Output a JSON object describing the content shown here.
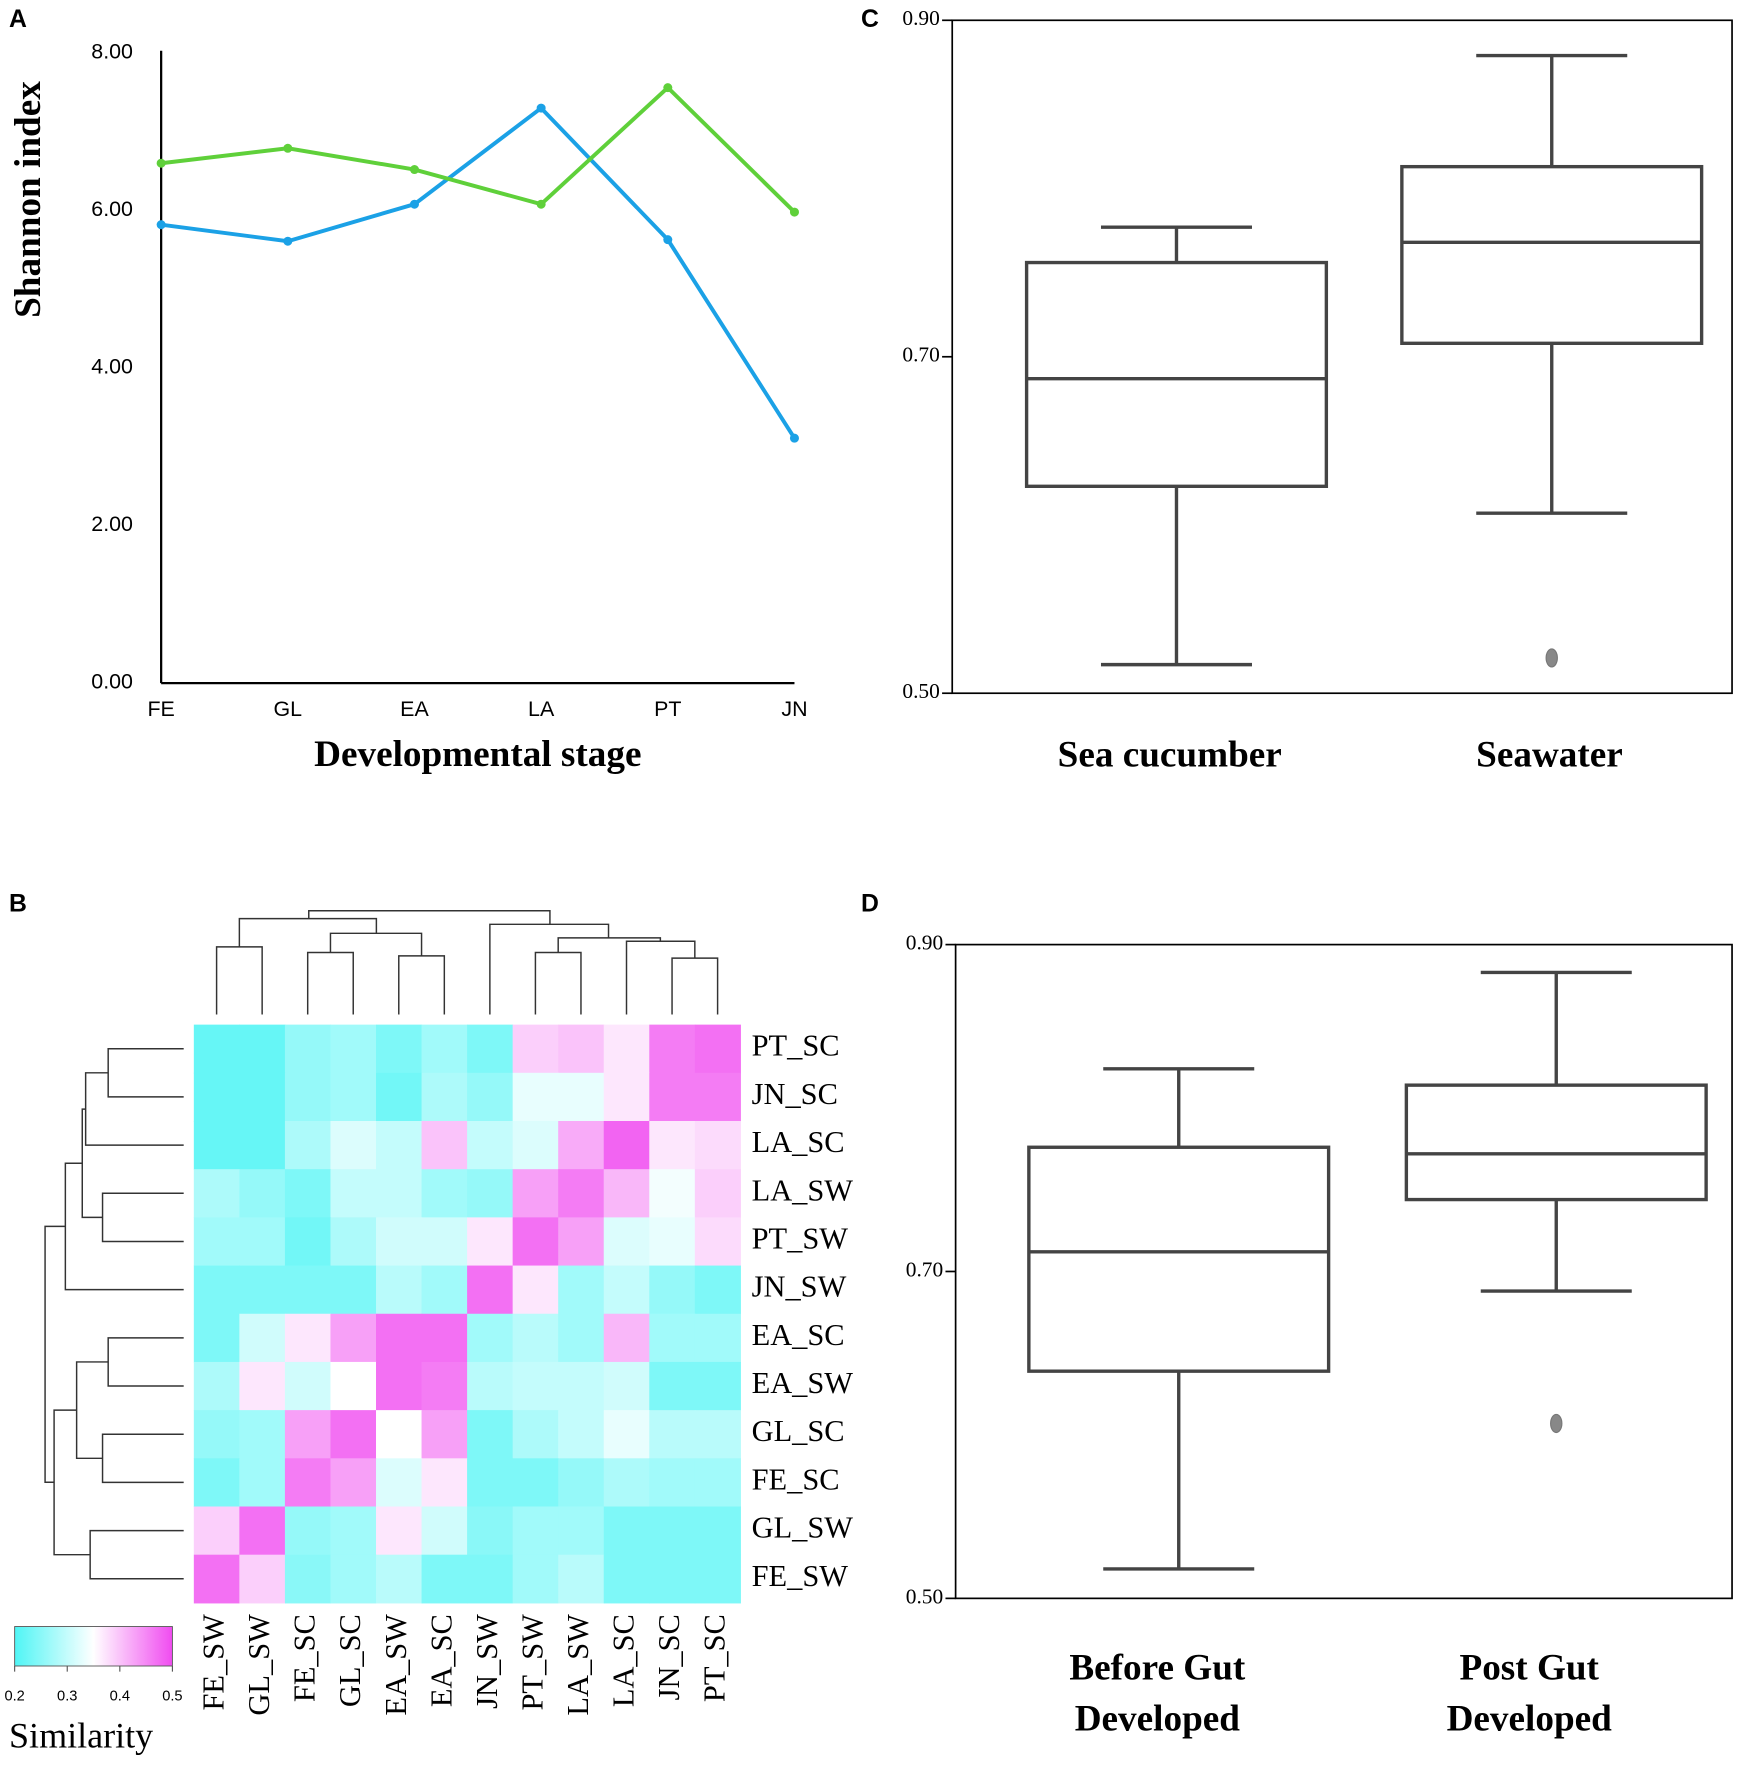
{
  "chart_data": [
    {
      "type": "line",
      "panel": "A",
      "xlabel": "Developmental stage",
      "ylabel": "Shannon index",
      "categories": [
        "FE",
        "GL",
        "EA",
        "LA",
        "PT",
        "JN"
      ],
      "series": [
        {
          "color": "#1ba1e6",
          "values": [
            5.82,
            5.61,
            6.08,
            7.3,
            5.63,
            3.11
          ]
        },
        {
          "color": "#5fd03a",
          "values": [
            6.6,
            6.79,
            6.52,
            6.08,
            7.56,
            5.98
          ]
        }
      ],
      "ylim": [
        0,
        8
      ],
      "yticks": [
        {
          "value": 0,
          "label": "0.00"
        },
        {
          "value": 2,
          "label": "2.00"
        },
        {
          "value": 4,
          "label": "4.00"
        },
        {
          "value": 6,
          "label": "6.00"
        },
        {
          "value": 8,
          "label": "8.00"
        }
      ],
      "grid": false
    },
    {
      "type": "heatmap",
      "panel": "B",
      "rows": [
        "PT_SC",
        "JN_SC",
        "LA_SC",
        "LA_SW",
        "PT_SW",
        "JN_SW",
        "EA_SC",
        "EA_SW",
        "GL_SC",
        "FE_SC",
        "GL_SW",
        "FE_SW"
      ],
      "columns": [
        "FE_SW",
        "GL_SW",
        "FE_SC",
        "GL_SC",
        "EA_SW",
        "EA_SC",
        "JN_SW",
        "PT_SW",
        "LA_SW",
        "LA_SC",
        "JN_SC",
        "PT_SC"
      ],
      "values": [
        [
          0.22,
          0.22,
          0.26,
          0.27,
          0.24,
          0.27,
          0.24,
          0.39,
          0.4,
          0.37,
          0.46,
          0.47
        ],
        [
          0.22,
          0.22,
          0.26,
          0.27,
          0.23,
          0.28,
          0.26,
          0.33,
          0.33,
          0.37,
          0.46,
          0.46
        ],
        [
          0.22,
          0.22,
          0.28,
          0.32,
          0.3,
          0.4,
          0.3,
          0.32,
          0.42,
          0.48,
          0.37,
          0.38
        ],
        [
          0.28,
          0.26,
          0.24,
          0.3,
          0.3,
          0.27,
          0.26,
          0.43,
          0.46,
          0.41,
          0.34,
          0.39
        ],
        [
          0.27,
          0.27,
          0.23,
          0.28,
          0.31,
          0.31,
          0.37,
          0.47,
          0.43,
          0.32,
          0.33,
          0.38
        ],
        [
          0.24,
          0.24,
          0.24,
          0.24,
          0.29,
          0.27,
          0.47,
          0.37,
          0.27,
          0.3,
          0.26,
          0.24
        ],
        [
          0.24,
          0.31,
          0.37,
          0.43,
          0.47,
          0.47,
          0.27,
          0.29,
          0.27,
          0.41,
          0.27,
          0.27
        ],
        [
          0.28,
          0.37,
          0.31,
          0.35,
          0.47,
          0.46,
          0.29,
          0.3,
          0.3,
          0.31,
          0.24,
          0.24
        ],
        [
          0.26,
          0.27,
          0.43,
          0.47,
          0.35,
          0.43,
          0.24,
          0.28,
          0.3,
          0.33,
          0.29,
          0.29
        ],
        [
          0.24,
          0.27,
          0.46,
          0.43,
          0.32,
          0.37,
          0.24,
          0.24,
          0.26,
          0.28,
          0.27,
          0.27
        ],
        [
          0.39,
          0.47,
          0.26,
          0.27,
          0.37,
          0.31,
          0.25,
          0.27,
          0.27,
          0.24,
          0.24,
          0.24
        ],
        [
          0.47,
          0.39,
          0.25,
          0.27,
          0.29,
          0.24,
          0.24,
          0.27,
          0.29,
          0.24,
          0.24,
          0.24
        ]
      ],
      "clim": [
        0.2,
        0.5
      ],
      "cticks": [
        0.2,
        0.3,
        0.4,
        0.5
      ],
      "colors": [
        "#4ff5f5",
        "#ffffff",
        "#f04cf0"
      ],
      "colorbar_label": "Similarity"
    },
    {
      "type": "box",
      "panel": "C",
      "color": "#444444",
      "categories": [
        "Sea cucumber",
        "Seawater"
      ],
      "boxes": [
        {
          "whisker_low": 0.517,
          "q1": 0.623,
          "median": 0.687,
          "q3": 0.756,
          "whisker_high": 0.777,
          "outliers": []
        },
        {
          "whisker_low": 0.607,
          "q1": 0.708,
          "median": 0.768,
          "q3": 0.813,
          "whisker_high": 0.879,
          "outliers": [
            0.521
          ]
        }
      ],
      "ylim": [
        0.5,
        0.9
      ],
      "yticks": [
        {
          "value": 0.5,
          "label": "0.50"
        },
        {
          "value": 0.7,
          "label": "0.70"
        },
        {
          "value": 0.9,
          "label": "0.90"
        }
      ]
    },
    {
      "type": "box",
      "panel": "D",
      "color": "#444444",
      "categories": [
        "Before Gut Developed",
        "Post Gut Developed"
      ],
      "boxes": [
        {
          "whisker_low": 0.518,
          "q1": 0.639,
          "median": 0.712,
          "q3": 0.776,
          "whisker_high": 0.824,
          "outliers": []
        },
        {
          "whisker_low": 0.688,
          "q1": 0.744,
          "median": 0.772,
          "q3": 0.814,
          "whisker_high": 0.883,
          "outliers": [
            0.607
          ]
        }
      ],
      "ylim": [
        0.5,
        0.9
      ],
      "yticks": [
        {
          "value": 0.5,
          "label": "0.50"
        },
        {
          "value": 0.7,
          "label": "0.70"
        },
        {
          "value": 0.9,
          "label": "0.90"
        }
      ]
    }
  ]
}
